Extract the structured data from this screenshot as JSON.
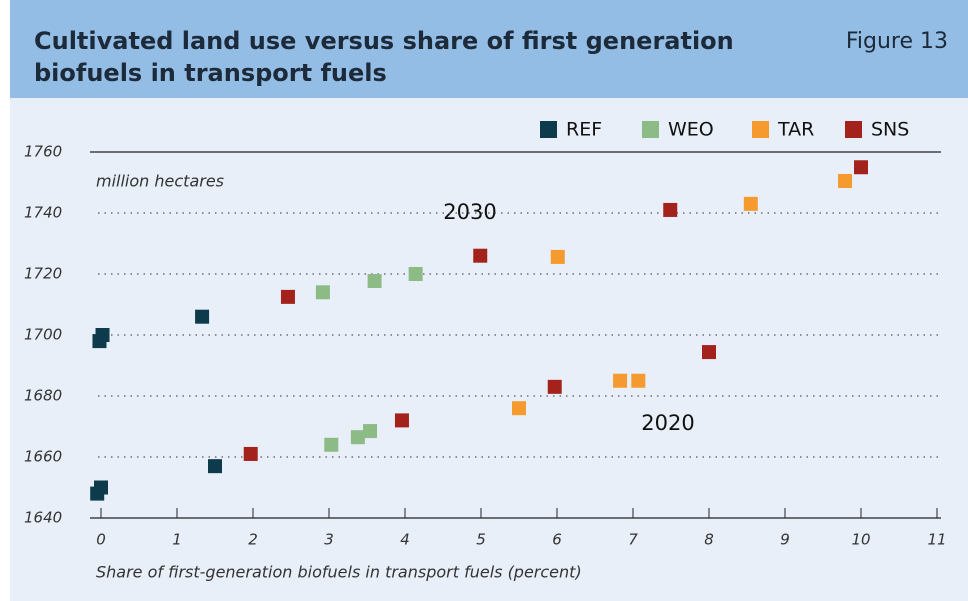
{
  "chart_data": {
    "type": "scatter",
    "title": [
      "Cultivated land use versus share of first generation",
      "biofuels in transport fuels"
    ],
    "figure_label": "Figure 13",
    "y_unit_label": "million hectares",
    "xlabel": "Share of first-generation biofuels in transport fuels (percent)",
    "annotations": [
      "2030",
      "2020"
    ],
    "xlim": [
      0,
      11
    ],
    "xticks": [
      0,
      1,
      2,
      3,
      4,
      5,
      6,
      7,
      8,
      9,
      10,
      11
    ],
    "ylim": [
      1640,
      1760
    ],
    "yticks": [
      1640,
      1660,
      1680,
      1700,
      1720,
      1740,
      1760
    ],
    "grid": true,
    "legend": "top-right",
    "series": [
      {
        "name": "REF",
        "color": "#0e3b4c",
        "x": [
          -0.05,
          0,
          -0.02,
          0.02,
          1.33,
          1.5
        ],
        "y": [
          1648,
          1650,
          1698,
          1700,
          1706,
          1657
        ]
      },
      {
        "name": "WEO",
        "color": "#8dbb86",
        "x": [
          2.92,
          3.6,
          4.14,
          3.03,
          3.38,
          3.54
        ],
        "y": [
          1714,
          1717.7,
          1720,
          1664,
          1666.5,
          1668.5
        ]
      },
      {
        "name": "TAR",
        "color": "#f59a2e",
        "x": [
          6.01,
          8.55,
          9.79,
          5.5,
          6.83,
          7.07
        ],
        "y": [
          1725.6,
          1743,
          1750.5,
          1676,
          1685,
          1685
        ]
      },
      {
        "name": "SNS",
        "color": "#a3231c",
        "x": [
          2.46,
          4.99,
          7.49,
          10,
          1.97,
          3.96,
          5.97,
          8.0
        ],
        "y": [
          1712.5,
          1726,
          1741,
          1755,
          1661,
          1672,
          1683,
          1694.4
        ]
      }
    ]
  }
}
